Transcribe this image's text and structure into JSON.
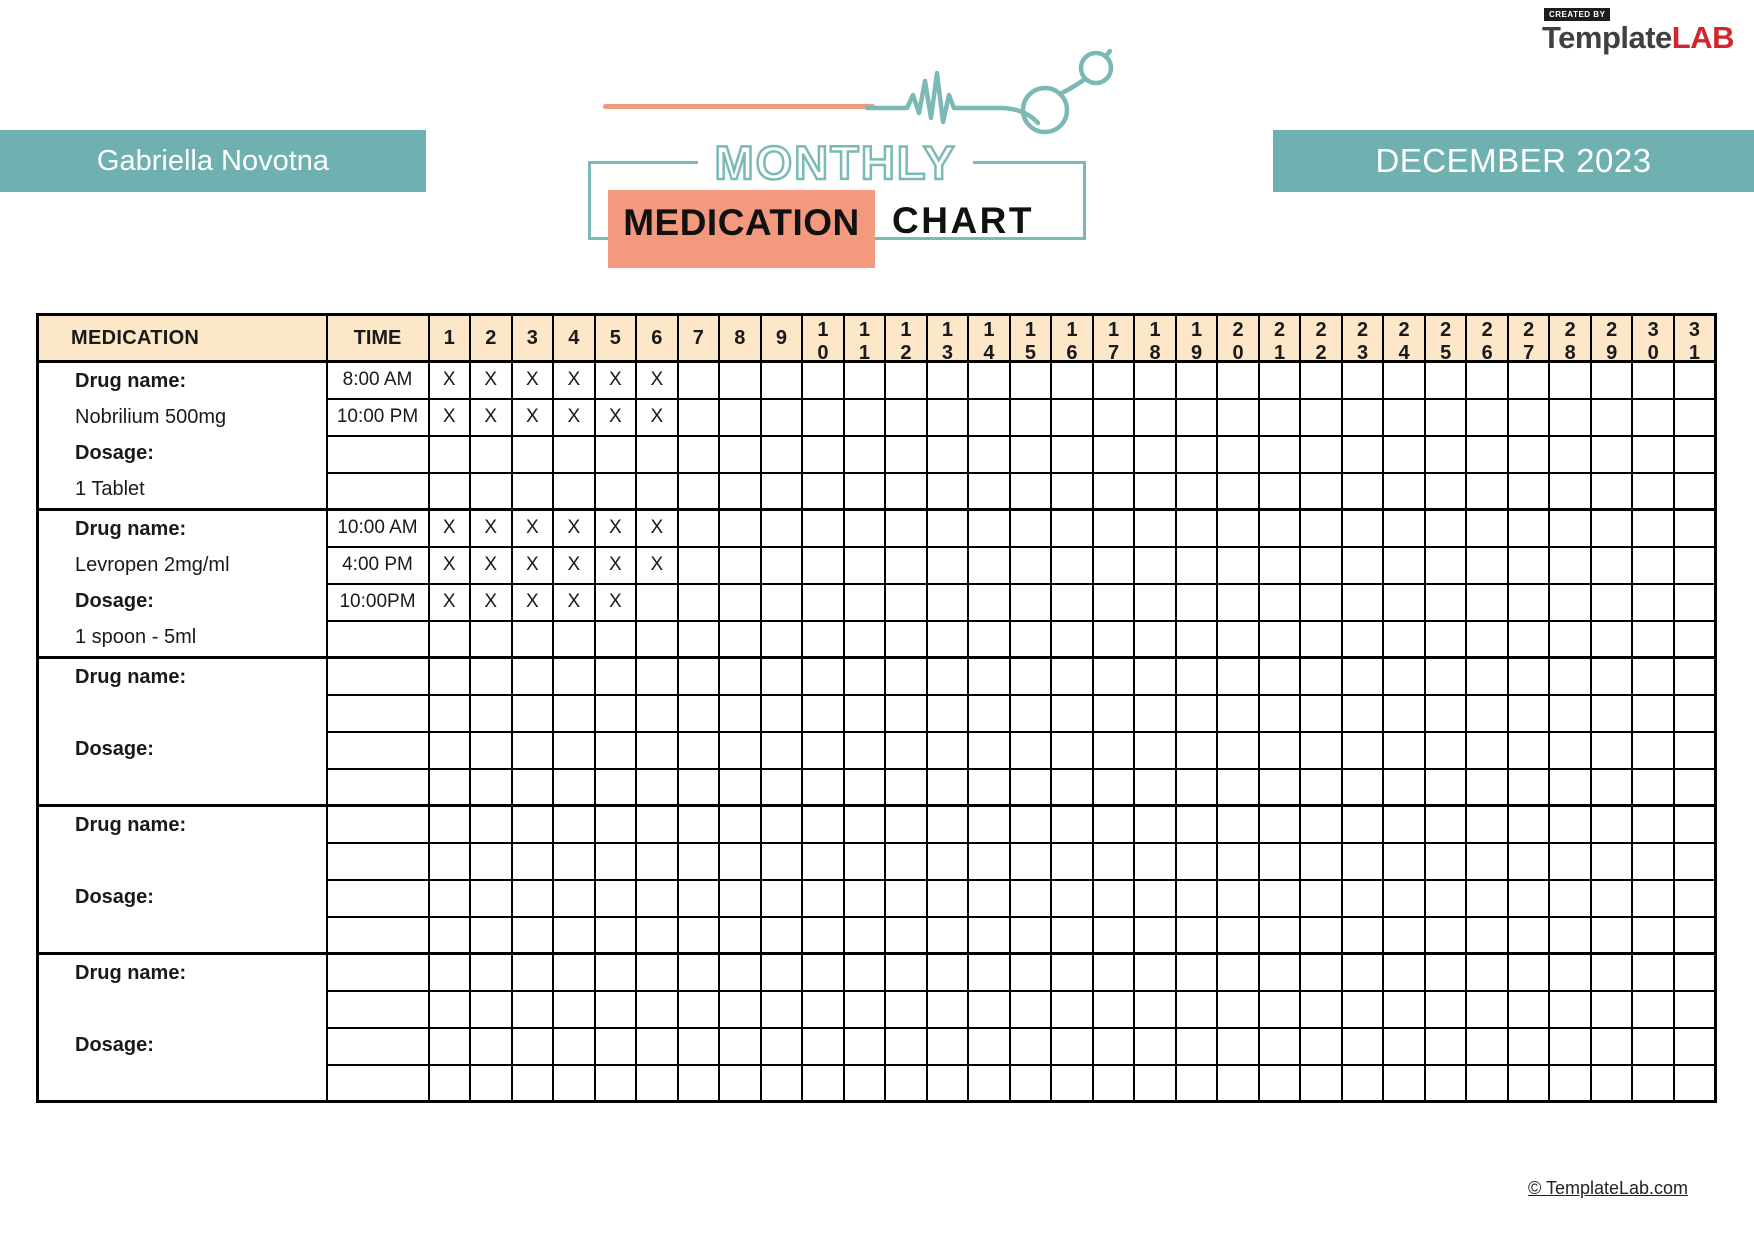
{
  "branding": {
    "created_by": "CREATED BY",
    "name_primary": "Template",
    "name_accent": "LAB",
    "footer_link": "© TemplateLab.com"
  },
  "banners": {
    "patient_name": "Gabriella Novotna",
    "period": "DECEMBER 2023"
  },
  "logo": {
    "word_top": "MONTHLY",
    "word_highlight": "MEDICATION",
    "word_rest": "CHART"
  },
  "colors": {
    "teal_banner": "#6FB1B0",
    "logo_teal": "#7BB9B7",
    "coral": "#F2997E",
    "table_header_bg": "#FDE7C9",
    "brand_red": "#D2252E"
  },
  "table": {
    "medication_header": "MEDICATION",
    "time_header": "TIME",
    "days": [
      "1",
      "2",
      "3",
      "4",
      "5",
      "6",
      "7",
      "8",
      "9",
      "10",
      "11",
      "12",
      "13",
      "14",
      "15",
      "16",
      "17",
      "18",
      "19",
      "20",
      "21",
      "22",
      "23",
      "24",
      "25",
      "26",
      "27",
      "28",
      "29",
      "30",
      "31"
    ],
    "mark": "X",
    "blocks": [
      {
        "medication_lines": [
          {
            "text": "Drug name:",
            "bold": true
          },
          {
            "text": "Nobrilium 500mg",
            "bold": false
          },
          {
            "text": "Dosage:",
            "bold": true
          },
          {
            "text": "1 Tablet",
            "bold": false
          }
        ],
        "rows": [
          {
            "time": "8:00 AM",
            "marked_days": [
              1,
              2,
              3,
              4,
              5,
              6
            ]
          },
          {
            "time": "10:00 PM",
            "marked_days": [
              1,
              2,
              3,
              4,
              5,
              6
            ]
          },
          {
            "time": "",
            "marked_days": []
          },
          {
            "time": "",
            "marked_days": []
          }
        ]
      },
      {
        "medication_lines": [
          {
            "text": "Drug name:",
            "bold": true
          },
          {
            "text": "Levropen 2mg/ml",
            "bold": false
          },
          {
            "text": "Dosage:",
            "bold": true
          },
          {
            "text": "1 spoon - 5ml",
            "bold": false
          }
        ],
        "rows": [
          {
            "time": "10:00 AM",
            "marked_days": [
              1,
              2,
              3,
              4,
              5,
              6
            ]
          },
          {
            "time": "4:00 PM",
            "marked_days": [
              1,
              2,
              3,
              4,
              5,
              6
            ]
          },
          {
            "time": "10:00PM",
            "marked_days": [
              1,
              2,
              3,
              4,
              5
            ]
          },
          {
            "time": "",
            "marked_days": []
          }
        ]
      },
      {
        "medication_lines": [
          {
            "text": "Drug name:",
            "bold": true
          },
          {
            "text": "",
            "bold": false
          },
          {
            "text": "Dosage:",
            "bold": true
          },
          {
            "text": "",
            "bold": false
          }
        ],
        "rows": [
          {
            "time": "",
            "marked_days": []
          },
          {
            "time": "",
            "marked_days": []
          },
          {
            "time": "",
            "marked_days": []
          },
          {
            "time": "",
            "marked_days": []
          }
        ]
      },
      {
        "medication_lines": [
          {
            "text": "Drug name:",
            "bold": true
          },
          {
            "text": "",
            "bold": false
          },
          {
            "text": "Dosage:",
            "bold": true
          },
          {
            "text": "",
            "bold": false
          }
        ],
        "rows": [
          {
            "time": "",
            "marked_days": []
          },
          {
            "time": "",
            "marked_days": []
          },
          {
            "time": "",
            "marked_days": []
          },
          {
            "time": "",
            "marked_days": []
          }
        ]
      },
      {
        "medication_lines": [
          {
            "text": "Drug name:",
            "bold": true
          },
          {
            "text": "",
            "bold": false
          },
          {
            "text": "Dosage:",
            "bold": true
          },
          {
            "text": "",
            "bold": false
          }
        ],
        "rows": [
          {
            "time": "",
            "marked_days": []
          },
          {
            "time": "",
            "marked_days": []
          },
          {
            "time": "",
            "marked_days": []
          },
          {
            "time": "",
            "marked_days": []
          }
        ]
      }
    ]
  }
}
